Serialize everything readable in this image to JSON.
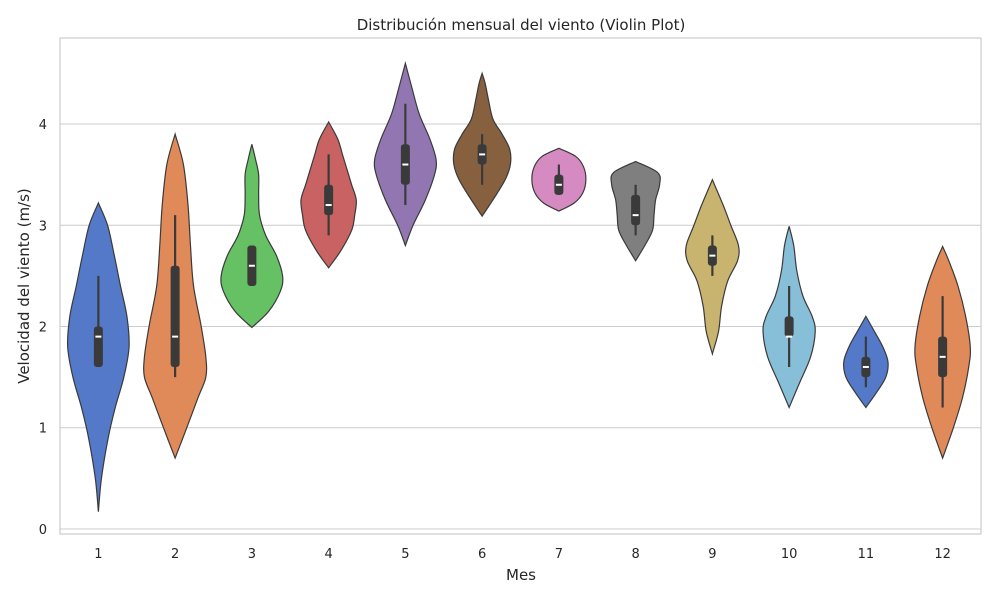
{
  "chart_data": {
    "type": "violin",
    "title": "Distribución mensual del viento (Violin Plot)",
    "xlabel": "Mes",
    "ylabel": "Velocidad del viento (m/s)",
    "ylim": [
      -0.05,
      4.85
    ],
    "yticks": [
      0,
      1,
      2,
      3,
      4
    ],
    "grid": "horizontal",
    "categories": [
      "1",
      "2",
      "3",
      "4",
      "5",
      "6",
      "7",
      "8",
      "9",
      "10",
      "11",
      "12"
    ],
    "violins": [
      {
        "category": "1",
        "color": "#5479c9",
        "profile": [
          [
            0.17,
            0
          ],
          [
            0.5,
            0.1
          ],
          [
            0.9,
            0.32
          ],
          [
            1.2,
            0.55
          ],
          [
            1.5,
            0.83
          ],
          [
            1.8,
            1
          ],
          [
            2.1,
            0.93
          ],
          [
            2.4,
            0.72
          ],
          [
            2.7,
            0.52
          ],
          [
            3.0,
            0.3
          ],
          [
            3.22,
            0
          ]
        ],
        "box": {
          "whisker_low": 1.6,
          "q1": 1.6,
          "median": 1.9,
          "q3": 2.0,
          "whisker_high": 2.5
        }
      },
      {
        "category": "2",
        "color": "#e08959",
        "profile": [
          [
            0.7,
            0
          ],
          [
            1.0,
            0.38
          ],
          [
            1.3,
            0.75
          ],
          [
            1.5,
            1
          ],
          [
            1.7,
            1
          ],
          [
            2.0,
            0.85
          ],
          [
            2.4,
            0.6
          ],
          [
            2.8,
            0.5
          ],
          [
            3.2,
            0.42
          ],
          [
            3.6,
            0.27
          ],
          [
            3.9,
            0
          ]
        ],
        "box": {
          "whisker_low": 1.5,
          "q1": 1.6,
          "median": 1.9,
          "q3": 2.6,
          "whisker_high": 3.1
        }
      },
      {
        "category": "3",
        "color": "#66c064",
        "profile": [
          [
            1.99,
            0
          ],
          [
            2.15,
            0.55
          ],
          [
            2.35,
            0.93
          ],
          [
            2.5,
            1
          ],
          [
            2.7,
            0.8
          ],
          [
            2.9,
            0.45
          ],
          [
            3.1,
            0.25
          ],
          [
            3.3,
            0.22
          ],
          [
            3.5,
            0.22
          ],
          [
            3.65,
            0.12
          ],
          [
            3.8,
            0
          ]
        ],
        "box": {
          "whisker_low": 2.4,
          "q1": 2.4,
          "median": 2.6,
          "q3": 2.8,
          "whisker_high": 2.8
        }
      },
      {
        "category": "4",
        "color": "#c96262",
        "profile": [
          [
            2.58,
            0
          ],
          [
            2.75,
            0.4
          ],
          [
            2.95,
            0.75
          ],
          [
            3.1,
            0.85
          ],
          [
            3.25,
            0.9
          ],
          [
            3.4,
            0.75
          ],
          [
            3.55,
            0.6
          ],
          [
            3.7,
            0.45
          ],
          [
            3.85,
            0.3
          ],
          [
            4.02,
            0
          ]
        ],
        "box": {
          "whisker_low": 2.9,
          "q1": 3.1,
          "median": 3.2,
          "q3": 3.4,
          "whisker_high": 3.7
        }
      },
      {
        "category": "5",
        "color": "#9276b2",
        "profile": [
          [
            2.8,
            0
          ],
          [
            3.0,
            0.25
          ],
          [
            3.25,
            0.65
          ],
          [
            3.5,
            0.95
          ],
          [
            3.65,
            1
          ],
          [
            3.85,
            0.8
          ],
          [
            4.1,
            0.45
          ],
          [
            4.35,
            0.22
          ],
          [
            4.6,
            0
          ]
        ],
        "box": {
          "whisker_low": 3.2,
          "q1": 3.4,
          "median": 3.6,
          "q3": 3.8,
          "whisker_high": 4.2
        }
      },
      {
        "category": "6",
        "color": "#86603f",
        "profile": [
          [
            3.09,
            0
          ],
          [
            3.25,
            0.35
          ],
          [
            3.45,
            0.75
          ],
          [
            3.6,
            0.92
          ],
          [
            3.75,
            0.9
          ],
          [
            3.9,
            0.65
          ],
          [
            4.05,
            0.35
          ],
          [
            4.25,
            0.2
          ],
          [
            4.4,
            0.1
          ],
          [
            4.5,
            0
          ]
        ],
        "box": {
          "whisker_low": 3.4,
          "q1": 3.6,
          "median": 3.7,
          "q3": 3.8,
          "whisker_high": 3.9
        }
      },
      {
        "category": "7",
        "color": "#d58bc2",
        "profile": [
          [
            3.14,
            0
          ],
          [
            3.22,
            0.5
          ],
          [
            3.32,
            0.78
          ],
          [
            3.45,
            0.88
          ],
          [
            3.58,
            0.8
          ],
          [
            3.68,
            0.55
          ],
          [
            3.76,
            0
          ]
        ],
        "box": {
          "whisker_low": 3.3,
          "q1": 3.3,
          "median": 3.4,
          "q3": 3.5,
          "whisker_high": 3.6
        }
      },
      {
        "category": "8",
        "color": "#7f7f7f",
        "profile": [
          [
            2.65,
            0
          ],
          [
            2.8,
            0.3
          ],
          [
            2.95,
            0.55
          ],
          [
            3.1,
            0.6
          ],
          [
            3.25,
            0.65
          ],
          [
            3.4,
            0.78
          ],
          [
            3.52,
            0.72
          ],
          [
            3.63,
            0
          ]
        ],
        "box": {
          "whisker_low": 2.9,
          "q1": 3.0,
          "median": 3.1,
          "q3": 3.3,
          "whisker_high": 3.4
        }
      },
      {
        "category": "9",
        "color": "#c9b46f",
        "profile": [
          [
            1.73,
            0
          ],
          [
            1.95,
            0.2
          ],
          [
            2.2,
            0.3
          ],
          [
            2.45,
            0.5
          ],
          [
            2.65,
            0.82
          ],
          [
            2.8,
            0.85
          ],
          [
            3.0,
            0.6
          ],
          [
            3.2,
            0.35
          ],
          [
            3.45,
            0
          ]
        ],
        "box": {
          "whisker_low": 2.5,
          "q1": 2.6,
          "median": 2.7,
          "q3": 2.8,
          "whisker_high": 2.9
        }
      },
      {
        "category": "10",
        "color": "#88bfd8",
        "profile": [
          [
            1.2,
            0
          ],
          [
            1.45,
            0.35
          ],
          [
            1.7,
            0.7
          ],
          [
            1.95,
            0.85
          ],
          [
            2.1,
            0.75
          ],
          [
            2.3,
            0.45
          ],
          [
            2.55,
            0.25
          ],
          [
            2.8,
            0.15
          ],
          [
            2.99,
            0
          ]
        ],
        "box": {
          "whisker_low": 1.6,
          "q1": 1.9,
          "median": 1.9,
          "q3": 2.1,
          "whisker_high": 2.4
        }
      },
      {
        "category": "11",
        "color": "#5479c9",
        "profile": [
          [
            1.2,
            0
          ],
          [
            1.35,
            0.35
          ],
          [
            1.5,
            0.65
          ],
          [
            1.65,
            0.72
          ],
          [
            1.8,
            0.55
          ],
          [
            1.95,
            0.28
          ],
          [
            2.1,
            0
          ]
        ],
        "box": {
          "whisker_low": 1.4,
          "q1": 1.5,
          "median": 1.6,
          "q3": 1.7,
          "whisker_high": 1.9
        }
      },
      {
        "category": "12",
        "color": "#e08959",
        "profile": [
          [
            0.7,
            0
          ],
          [
            1.0,
            0.35
          ],
          [
            1.3,
            0.65
          ],
          [
            1.6,
            0.85
          ],
          [
            1.8,
            0.9
          ],
          [
            2.1,
            0.75
          ],
          [
            2.4,
            0.5
          ],
          [
            2.65,
            0.2
          ],
          [
            2.79,
            0
          ]
        ],
        "box": {
          "whisker_low": 1.2,
          "q1": 1.5,
          "median": 1.7,
          "q3": 1.9,
          "whisker_high": 2.3
        }
      }
    ]
  }
}
